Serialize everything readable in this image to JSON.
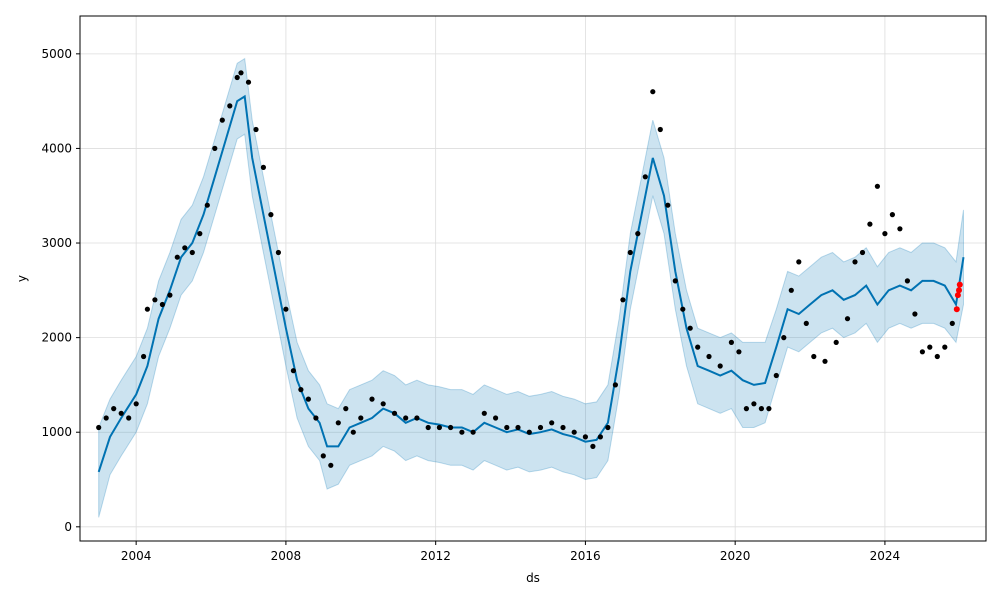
{
  "chart_data": {
    "type": "line",
    "title": "",
    "xlabel": "ds",
    "ylabel": "y",
    "grid": true,
    "xlim": [
      2002.5,
      2026.7
    ],
    "ylim": [
      -150,
      5400
    ],
    "x_ticks": [
      2004,
      2008,
      2012,
      2016,
      2020,
      2024
    ],
    "x_tick_labels": [
      "2004",
      "2008",
      "2012",
      "2016",
      "2020",
      "2024"
    ],
    "y_ticks": [
      0,
      1000,
      2000,
      3000,
      4000,
      5000
    ],
    "y_tick_labels": [
      "0",
      "1000",
      "2000",
      "3000",
      "4000",
      "5000"
    ],
    "colors": {
      "observed": "#000000",
      "forecast_line": "#0072B2",
      "uncertainty_band": "#0072B2",
      "highlight": "#ff0000",
      "grid": "#dddddd"
    },
    "series": [
      {
        "role": "observed",
        "kind": "scatter",
        "x": [
          2003.0,
          2003.2,
          2003.4,
          2003.6,
          2003.8,
          2004.0,
          2004.2,
          2004.3,
          2004.5,
          2004.7,
          2004.9,
          2005.1,
          2005.3,
          2005.5,
          2005.7,
          2005.9,
          2006.1,
          2006.3,
          2006.5,
          2006.7,
          2006.8,
          2007.0,
          2007.2,
          2007.4,
          2007.6,
          2007.8,
          2008.0,
          2008.2,
          2008.4,
          2008.6,
          2008.8,
          2009.0,
          2009.2,
          2009.4,
          2009.6,
          2009.8,
          2010.0,
          2010.3,
          2010.6,
          2010.9,
          2011.2,
          2011.5,
          2011.8,
          2012.1,
          2012.4,
          2012.7,
          2013.0,
          2013.3,
          2013.6,
          2013.9,
          2014.2,
          2014.5,
          2014.8,
          2015.1,
          2015.4,
          2015.7,
          2016.0,
          2016.2,
          2016.4,
          2016.6,
          2016.8,
          2017.0,
          2017.2,
          2017.4,
          2017.6,
          2017.8,
          2018.0,
          2018.2,
          2018.4,
          2018.6,
          2018.8,
          2019.0,
          2019.3,
          2019.6,
          2019.9,
          2020.1,
          2020.3,
          2020.5,
          2020.7,
          2020.9,
          2021.1,
          2021.3,
          2021.5,
          2021.7,
          2021.9,
          2022.1,
          2022.4,
          2022.7,
          2023.0,
          2023.2,
          2023.4,
          2023.6,
          2023.8,
          2024.0,
          2024.2,
          2024.4,
          2024.6,
          2024.8,
          2025.0,
          2025.2,
          2025.4,
          2025.6,
          2025.8
        ],
        "y": [
          1050,
          1150,
          1250,
          1200,
          1150,
          1300,
          1800,
          2300,
          2400,
          2350,
          2450,
          2850,
          2950,
          2900,
          3100,
          3400,
          4000,
          4300,
          4450,
          4750,
          4800,
          4700,
          4200,
          3800,
          3300,
          2900,
          2300,
          1650,
          1450,
          1350,
          1150,
          750,
          650,
          1100,
          1250,
          1000,
          1150,
          1350,
          1300,
          1200,
          1150,
          1150,
          1050,
          1050,
          1050,
          1000,
          1000,
          1200,
          1150,
          1050,
          1050,
          1000,
          1050,
          1100,
          1050,
          1000,
          950,
          850,
          950,
          1050,
          1500,
          2400,
          2900,
          3100,
          3700,
          4600,
          4200,
          3400,
          2600,
          2300,
          2100,
          1900,
          1800,
          1700,
          1950,
          1850,
          1250,
          1300,
          1250,
          1250,
          1600,
          2000,
          2500,
          2800,
          2150,
          1800,
          1750,
          1950,
          2200,
          2800,
          2900,
          3200,
          3600,
          3100,
          3300,
          3150,
          2600,
          2250,
          1850,
          1900,
          1800,
          1900,
          2150
        ]
      },
      {
        "role": "highlight",
        "kind": "scatter",
        "x": [
          2025.92,
          2025.95,
          2025.98,
          2026.0
        ],
        "y": [
          2300,
          2450,
          2500,
          2560
        ]
      },
      {
        "role": "forecast",
        "kind": "line",
        "x": [
          2003.0,
          2003.3,
          2003.6,
          2004.0,
          2004.3,
          2004.6,
          2004.9,
          2005.2,
          2005.5,
          2005.8,
          2006.1,
          2006.4,
          2006.7,
          2006.9,
          2007.1,
          2007.4,
          2007.7,
          2008.0,
          2008.3,
          2008.6,
          2008.9,
          2009.1,
          2009.4,
          2009.7,
          2010.0,
          2010.3,
          2010.6,
          2010.9,
          2011.2,
          2011.5,
          2011.8,
          2012.1,
          2012.4,
          2012.7,
          2013.0,
          2013.3,
          2013.6,
          2013.9,
          2014.2,
          2014.5,
          2014.8,
          2015.1,
          2015.4,
          2015.7,
          2016.0,
          2016.3,
          2016.6,
          2016.9,
          2017.2,
          2017.5,
          2017.8,
          2018.1,
          2018.4,
          2018.7,
          2019.0,
          2019.3,
          2019.6,
          2019.9,
          2020.2,
          2020.5,
          2020.8,
          2021.1,
          2021.4,
          2021.7,
          2022.0,
          2022.3,
          2022.6,
          2022.9,
          2023.2,
          2023.5,
          2023.8,
          2024.1,
          2024.4,
          2024.7,
          2025.0,
          2025.3,
          2025.6,
          2025.9,
          2026.1
        ],
        "y": [
          580,
          950,
          1150,
          1400,
          1700,
          2200,
          2500,
          2850,
          3000,
          3300,
          3700,
          4100,
          4500,
          4550,
          3900,
          3300,
          2700,
          2100,
          1550,
          1250,
          1100,
          850,
          850,
          1050,
          1100,
          1150,
          1250,
          1200,
          1100,
          1150,
          1100,
          1080,
          1050,
          1050,
          1000,
          1100,
          1050,
          1000,
          1030,
          980,
          1000,
          1030,
          980,
          950,
          900,
          920,
          1100,
          1800,
          2700,
          3300,
          3900,
          3500,
          2700,
          2100,
          1700,
          1650,
          1600,
          1650,
          1550,
          1500,
          1520,
          1900,
          2300,
          2250,
          2350,
          2450,
          2500,
          2400,
          2450,
          2550,
          2350,
          2500,
          2550,
          2500,
          2600,
          2600,
          2550,
          2350,
          2850
        ]
      },
      {
        "role": "uncertainty",
        "kind": "area",
        "x": [
          2003.0,
          2003.3,
          2003.6,
          2004.0,
          2004.3,
          2004.6,
          2004.9,
          2005.2,
          2005.5,
          2005.8,
          2006.1,
          2006.4,
          2006.7,
          2006.9,
          2007.1,
          2007.4,
          2007.7,
          2008.0,
          2008.3,
          2008.6,
          2008.9,
          2009.1,
          2009.4,
          2009.7,
          2010.0,
          2010.3,
          2010.6,
          2010.9,
          2011.2,
          2011.5,
          2011.8,
          2012.1,
          2012.4,
          2012.7,
          2013.0,
          2013.3,
          2013.6,
          2013.9,
          2014.2,
          2014.5,
          2014.8,
          2015.1,
          2015.4,
          2015.7,
          2016.0,
          2016.3,
          2016.6,
          2016.9,
          2017.2,
          2017.5,
          2017.8,
          2018.1,
          2018.4,
          2018.7,
          2019.0,
          2019.3,
          2019.6,
          2019.9,
          2020.2,
          2020.5,
          2020.8,
          2021.1,
          2021.4,
          2021.7,
          2022.0,
          2022.3,
          2022.6,
          2022.9,
          2023.2,
          2023.5,
          2023.8,
          2024.1,
          2024.4,
          2024.7,
          2025.0,
          2025.3,
          2025.6,
          2025.9,
          2026.1
        ],
        "lower": [
          100,
          550,
          750,
          1000,
          1300,
          1800,
          2100,
          2450,
          2600,
          2900,
          3300,
          3700,
          4100,
          4150,
          3500,
          2900,
          2300,
          1700,
          1150,
          850,
          700,
          400,
          450,
          650,
          700,
          750,
          850,
          800,
          700,
          750,
          700,
          680,
          650,
          650,
          600,
          700,
          650,
          600,
          630,
          580,
          600,
          630,
          580,
          550,
          500,
          520,
          700,
          1400,
          2300,
          2900,
          3500,
          3100,
          2300,
          1700,
          1300,
          1250,
          1200,
          1250,
          1050,
          1050,
          1100,
          1500,
          1900,
          1850,
          1950,
          2050,
          2100,
          2000,
          2050,
          2150,
          1950,
          2100,
          2150,
          2100,
          2150,
          2150,
          2100,
          1950,
          2350
        ],
        "upper": [
          1050,
          1350,
          1550,
          1800,
          2100,
          2600,
          2900,
          3250,
          3400,
          3700,
          4100,
          4500,
          4900,
          4950,
          4300,
          3700,
          3100,
          2500,
          1950,
          1650,
          1500,
          1300,
          1250,
          1450,
          1500,
          1550,
          1650,
          1600,
          1500,
          1550,
          1500,
          1480,
          1450,
          1450,
          1400,
          1500,
          1450,
          1400,
          1430,
          1380,
          1400,
          1430,
          1380,
          1350,
          1300,
          1320,
          1500,
          2200,
          3100,
          3700,
          4300,
          3900,
          3100,
          2500,
          2100,
          2050,
          2000,
          2050,
          1950,
          1950,
          1950,
          2300,
          2700,
          2650,
          2750,
          2850,
          2900,
          2800,
          2850,
          2950,
          2750,
          2900,
          2950,
          2900,
          3000,
          3000,
          2950,
          2800,
          3350
        ]
      }
    ]
  }
}
